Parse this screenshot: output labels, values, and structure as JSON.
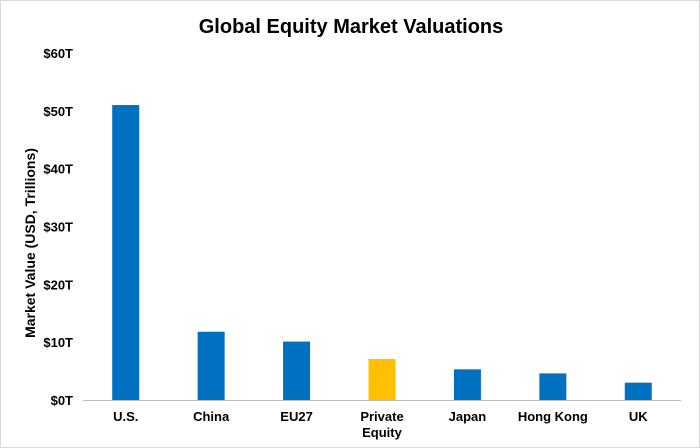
{
  "chart_data": {
    "type": "bar",
    "title": "Global Equity Market Valuations",
    "xlabel": "",
    "ylabel": "Market Value (USD, Trillions)",
    "ylim": [
      0,
      60
    ],
    "yticks": [
      0,
      10,
      20,
      30,
      40,
      50,
      60
    ],
    "ytick_labels": [
      "$0T",
      "$10T",
      "$20T",
      "$30T",
      "$40T",
      "$50T",
      "$60T"
    ],
    "grid": false,
    "legend": "none",
    "categories": [
      "U.S.",
      "China",
      "EU27",
      "Private Equity",
      "Japan",
      "Hong Kong",
      "UK"
    ],
    "category_label_lines": [
      [
        "U.S."
      ],
      [
        "China"
      ],
      [
        "EU27"
      ],
      [
        "Private",
        "Equity"
      ],
      [
        "Japan"
      ],
      [
        "Hong Kong"
      ],
      [
        "UK"
      ]
    ],
    "values": [
      51,
      11.8,
      10.1,
      7.1,
      5.3,
      4.6,
      3.0
    ],
    "colors": [
      "#0070C0",
      "#0070C0",
      "#0070C0",
      "#FFC000",
      "#0070C0",
      "#0070C0",
      "#0070C0"
    ],
    "axis_color": "#bfbfbf"
  }
}
